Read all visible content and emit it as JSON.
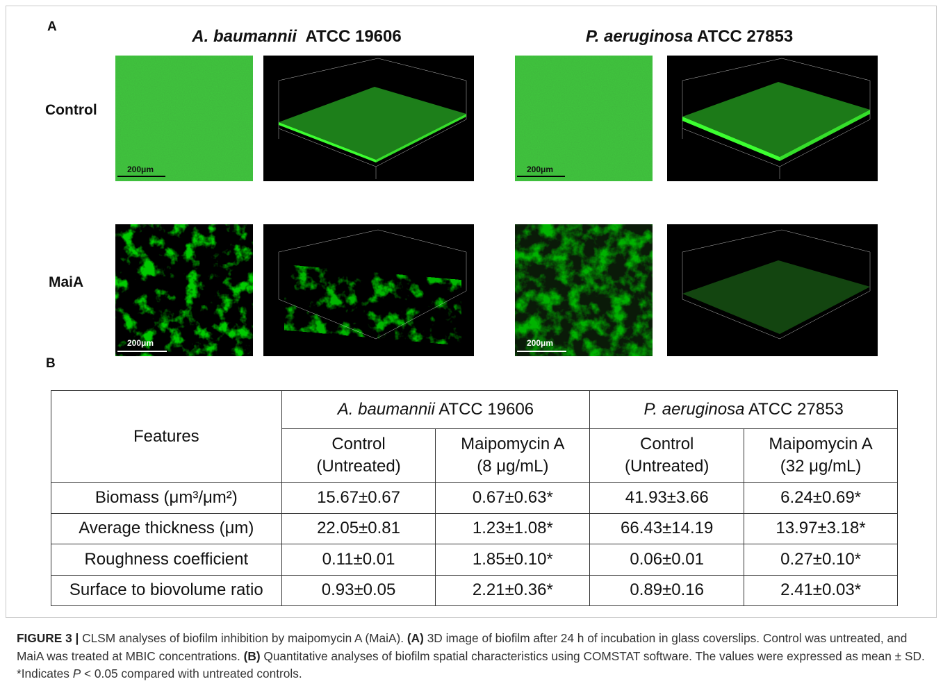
{
  "panel_a": {
    "label": "A",
    "columns": [
      {
        "species": "A. baumannii",
        "strain": "ATCC 19606"
      },
      {
        "species": "P. aeruginosa",
        "strain": "ATCC 27853"
      }
    ],
    "rows": [
      "Control",
      "MaiA"
    ],
    "scale_bar": "200μm"
  },
  "panel_b": {
    "label": "B",
    "table": {
      "corner": "Features",
      "groups": [
        {
          "species": "A. baumannii",
          "strain": "ATCC 19606"
        },
        {
          "species": "P. aeruginosa",
          "strain": "ATCC 27853"
        }
      ],
      "subheaders": [
        [
          "Control",
          "(Untreated)"
        ],
        [
          "Maipomycin A",
          "(8 μg/mL)"
        ],
        [
          "Control",
          "(Untreated)"
        ],
        [
          "Maipomycin A",
          "(32 μg/mL)"
        ]
      ],
      "rows": [
        [
          "Biomass (μm³/μm²)",
          "15.67±0.67",
          "0.67±0.63*",
          "41.93±3.66",
          "6.24±0.69*"
        ],
        [
          "Average thickness (μm)",
          "22.05±0.81",
          "1.23±1.08*",
          "66.43±14.19",
          "13.97±3.18*"
        ],
        [
          "Roughness coefficient",
          "0.11±0.01",
          "1.85±0.10*",
          "0.06±0.01",
          "0.27±0.10*"
        ],
        [
          "Surface to biovolume ratio",
          "0.93±0.05",
          "2.21±0.36*",
          "0.89±0.16",
          "2.41±0.03*"
        ]
      ]
    }
  },
  "caption": {
    "label": "FIGURE 3 |",
    "text_1": " CLSM analyses of biofilm inhibition by maipomycin A (MaiA). ",
    "a_ref": "(A)",
    "text_2": " 3D image of biofilm after 24 h of incubation in glass coverslips. Control was untreated, and MaiA was treated at MBIC concentrations. ",
    "b_ref": "(B)",
    "text_3": " Quantitative analyses of biofilm spatial characteristics using COMSTAT software. The values were expressed as mean ± SD. *Indicates ",
    "p": "P",
    "text_4": " < 0.05 compared with untreated controls."
  }
}
